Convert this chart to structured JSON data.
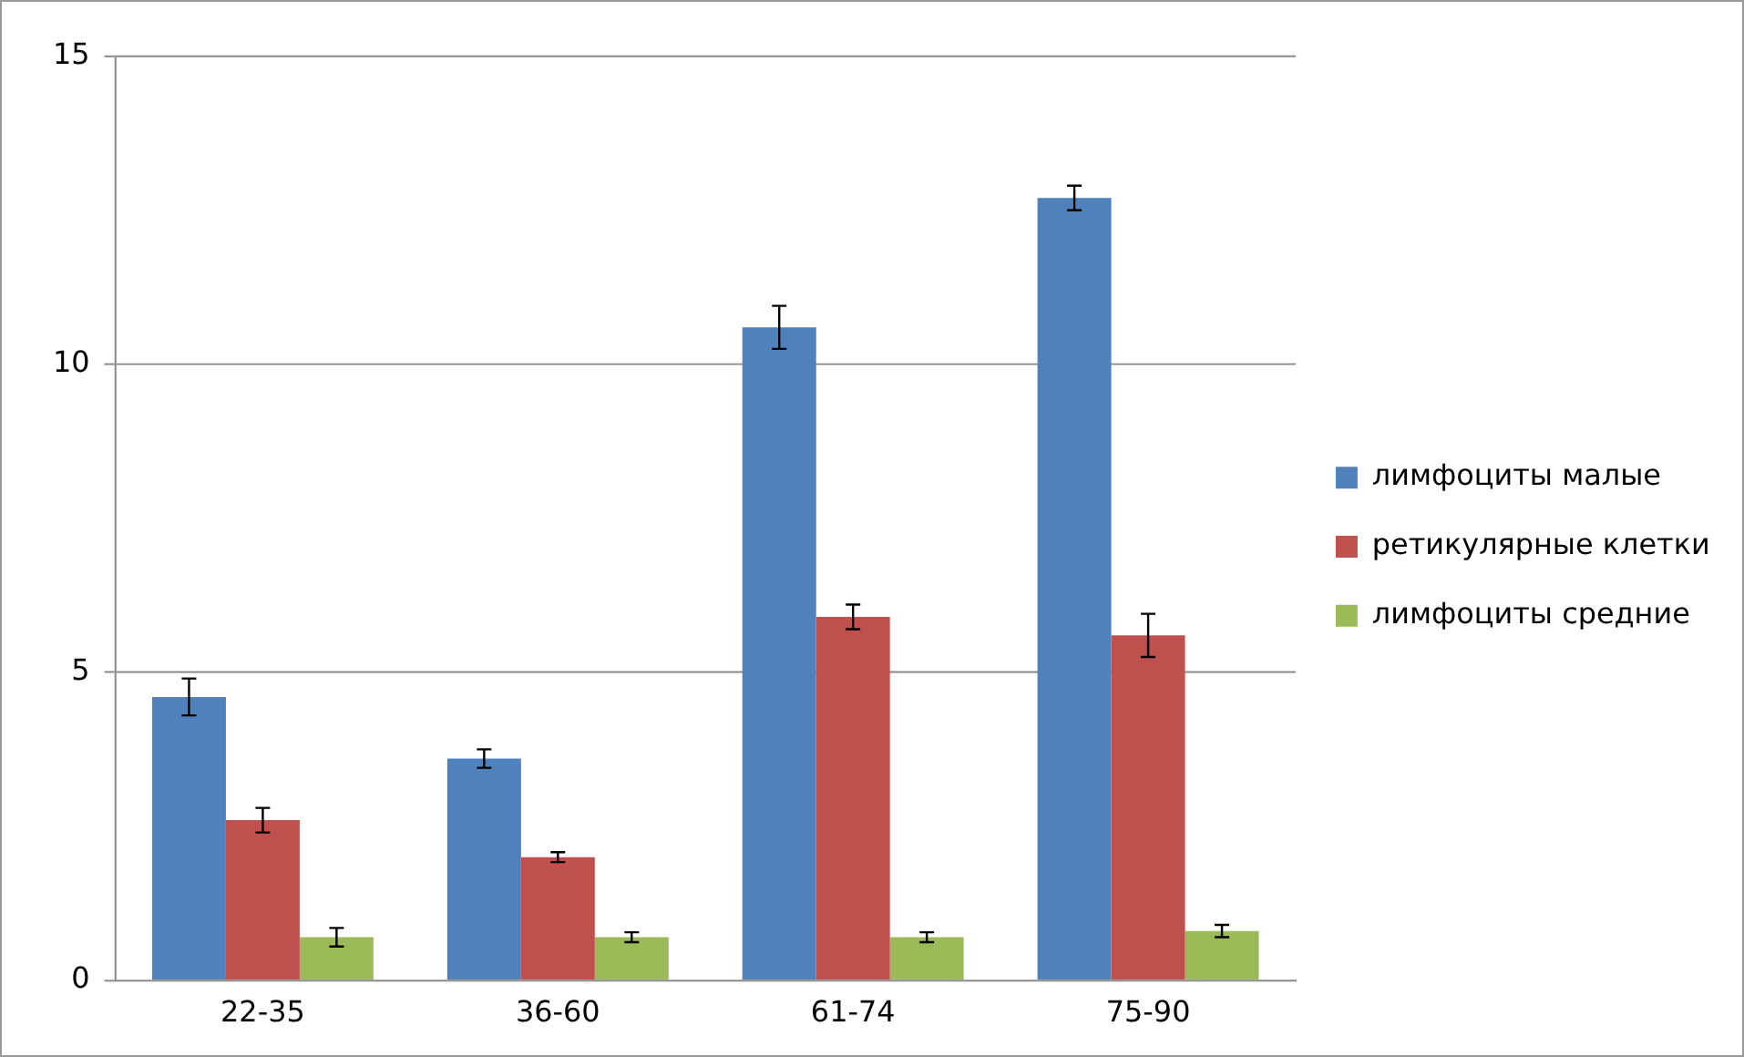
{
  "chart_data": {
    "type": "bar",
    "categories": [
      "22-35",
      "36-60",
      "61-74",
      "75-90"
    ],
    "series": [
      {
        "name": "лимфоциты малые",
        "color": "#4f81bd",
        "values": [
          4.6,
          3.6,
          10.6,
          12.7
        ],
        "errors": [
          0.3,
          0.15,
          0.35,
          0.2
        ]
      },
      {
        "name": "ретикулярные клетки",
        "color": "#c0504d",
        "values": [
          2.6,
          2.0,
          5.9,
          5.6
        ],
        "errors": [
          0.2,
          0.08,
          0.2,
          0.35
        ]
      },
      {
        "name": "лимфоциты средние",
        "color": "#9bbb59",
        "values": [
          0.7,
          0.7,
          0.7,
          0.8
        ],
        "errors": [
          0.15,
          0.08,
          0.08,
          0.1
        ]
      }
    ],
    "ylim": [
      0,
      15
    ],
    "yticks": [
      0,
      5,
      10,
      15
    ],
    "grid": "y",
    "legend": "right"
  }
}
